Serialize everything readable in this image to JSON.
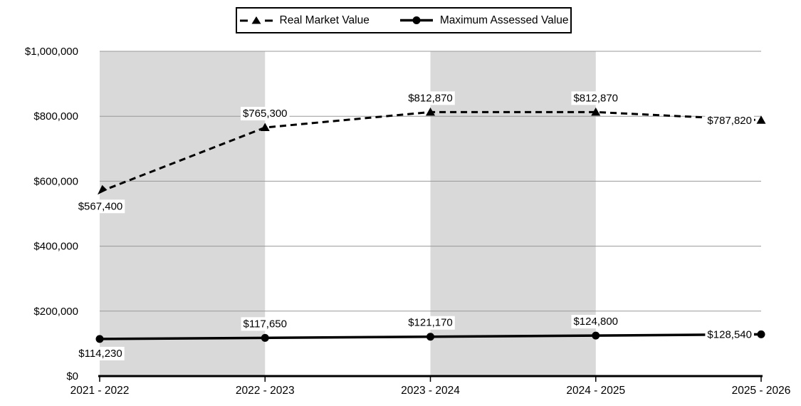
{
  "chart_data": {
    "type": "line",
    "title": "",
    "xlabel": "",
    "ylabel": "",
    "categories": [
      "2021 - 2022",
      "2022 - 2023",
      "2023 - 2024",
      "2024 - 2025",
      "2025 - 2026"
    ],
    "series": [
      {
        "name": "Real Market Value",
        "values": [
          567400,
          765300,
          812870,
          812870,
          787820
        ],
        "labels": [
          "$567,400",
          "$765,300",
          "$812,870",
          "$812,870",
          "$787,820"
        ],
        "label_placements": [
          "below",
          "above",
          "above",
          "above",
          "left"
        ],
        "line_style": "dashed",
        "marker": "triangle",
        "start_marker": "arrow-down-left"
      },
      {
        "name": "Maximum Assessed Value",
        "values": [
          114230,
          117650,
          121170,
          124800,
          128540
        ],
        "labels": [
          "$114,230",
          "$117,650",
          "$121,170",
          "$124,800",
          "$128,540"
        ],
        "label_placements": [
          "below",
          "above",
          "above",
          "above",
          "left"
        ],
        "line_style": "solid",
        "marker": "circle",
        "start_marker": "circle"
      }
    ],
    "y_axis": {
      "min": 0,
      "max": 1000000,
      "tick_interval": 200000,
      "tick_labels": [
        "$0",
        "$200,000",
        "$400,000",
        "$600,000",
        "$800,000",
        "$1,000,000"
      ]
    },
    "grid": "horizontal",
    "shaded_bands": [
      [
        0,
        1
      ],
      [
        2,
        3
      ]
    ],
    "legend": {
      "position": "top",
      "items": [
        "Real Market Value",
        "Maximum Assessed Value"
      ]
    },
    "colors": {
      "band": "#d9d9d9",
      "gridline": "#999999",
      "axis": "#000000",
      "series": "#000000",
      "label_bg": "#ffffff",
      "text": "#000000"
    }
  }
}
